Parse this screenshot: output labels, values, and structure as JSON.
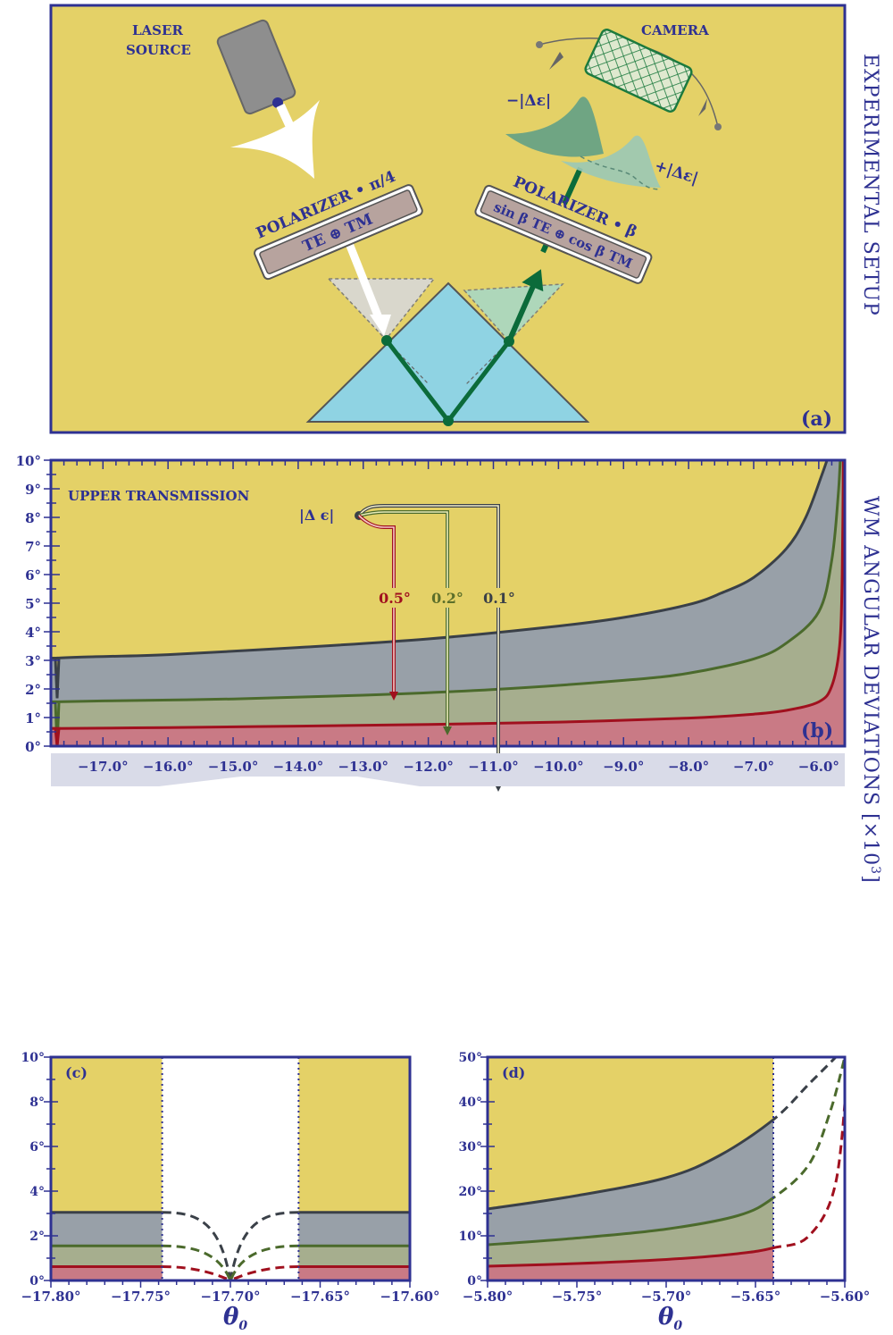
{
  "colors": {
    "bg_yellow": "#e4d167",
    "frame_blue": "#2e3192",
    "gray_band": "#98a0a8",
    "green_band": "#a6ae8e",
    "red_band": "#c97a85",
    "gray_line": "#3a4048",
    "green_line": "#4b6a2c",
    "red_line": "#a0101e",
    "prism": "#8fd3e3",
    "beam_green": "#0b6b3a"
  },
  "panel_a": {
    "label": "(a)",
    "side_title": "EXPERIMENTAL SETUP",
    "laser_label_1": "LASER",
    "laser_label_2": "SOURCE",
    "camera_label": "CAMERA",
    "polarizer_left_title": "POLARIZER • π/4",
    "polarizer_left_box": "TE ⊕ TM",
    "polarizer_right_title": "POLARIZER • β",
    "polarizer_right_box": "sin β TE ⊕ cos β TM",
    "minus_label": "−|Δε|",
    "plus_label": "+|Δε|"
  },
  "chart_data": [
    {
      "id": "b",
      "type": "area",
      "panel_label": "(b)",
      "side_title": "WM ANGULAR DEVIATIONS [×10",
      "side_title_sup": "3",
      "side_title_end": "]",
      "annotation": "UPPER TRANSMISSION",
      "legend_title": "|Δ ϵ|",
      "legend_values": [
        "0.5°",
        "0.2°",
        "0.1°"
      ],
      "xlim": [
        -17.8,
        -5.6
      ],
      "ylim": [
        0,
        10
      ],
      "yticks": [
        0,
        1,
        2,
        3,
        4,
        5,
        6,
        7,
        8,
        9,
        10
      ],
      "ytick_labels": [
        "0°",
        "1°",
        "2°",
        "3°",
        "4°",
        "5°",
        "6°",
        "7°",
        "8°",
        "9°",
        "10°"
      ],
      "xticks": [
        -17,
        -16,
        -15,
        -14,
        -13,
        -12,
        -11,
        -10,
        -9,
        -8,
        -7,
        -6
      ],
      "xtick_labels": [
        "−17.0°",
        "−16.0°",
        "−15.0°",
        "−14.0°",
        "−13.0°",
        "−12.0°",
        "−11.0°",
        "−10.0°",
        "−9.0°",
        "−8.0°",
        "−7.0°",
        "−6.0°"
      ],
      "series": [
        {
          "name": "0.1°",
          "x": [
            -17.7,
            -17.3,
            -16,
            -14,
            -12,
            -10,
            -9,
            -8,
            -7.5,
            -7,
            -6.5,
            -6.2,
            -5.95,
            -5.8
          ],
          "y": [
            3.08,
            3.12,
            3.2,
            3.45,
            3.75,
            4.2,
            4.5,
            4.95,
            5.35,
            5.9,
            6.9,
            8.0,
            9.5,
            10.5
          ]
        },
        {
          "name": "0.2°",
          "x": [
            -17.7,
            -17,
            -15,
            -13,
            -11,
            -9,
            -8,
            -7,
            -6.5,
            -6,
            -5.8,
            -5.7,
            -5.66
          ],
          "y": [
            1.55,
            1.58,
            1.65,
            1.78,
            1.98,
            2.3,
            2.55,
            3.05,
            3.6,
            4.7,
            6.5,
            8.8,
            10.5
          ]
        },
        {
          "name": "0.5°",
          "x": [
            -17.7,
            -16,
            -14,
            -12,
            -10,
            -8,
            -7,
            -6.5,
            -6,
            -5.8,
            -5.68,
            -5.64,
            -5.62
          ],
          "y": [
            0.62,
            0.65,
            0.7,
            0.76,
            0.84,
            0.98,
            1.12,
            1.25,
            1.55,
            2.1,
            3.5,
            6.0,
            10.5
          ]
        }
      ]
    },
    {
      "id": "c",
      "type": "area",
      "panel_label": "(c)",
      "xlabel": "θ",
      "xlabel_sub": "0",
      "xlim": [
        -17.8,
        -17.6
      ],
      "ylim": [
        0,
        10
      ],
      "yticks": [
        0,
        2,
        4,
        6,
        8,
        10
      ],
      "ytick_labels": [
        "0°",
        "2°",
        "4°",
        "6°",
        "8°",
        "10°"
      ],
      "xticks": [
        -17.8,
        -17.75,
        -17.7,
        -17.65,
        -17.6
      ],
      "xtick_labels": [
        "−17.80°",
        "−17.75°",
        "−17.70°",
        "−17.65°",
        "−17.60°"
      ],
      "gap": [
        -17.738,
        -17.662
      ],
      "dip_x": -17.7,
      "series": [
        {
          "name": "0.1°",
          "level": 3.05
        },
        {
          "name": "0.2°",
          "level": 1.55
        },
        {
          "name": "0.5°",
          "level": 0.62
        }
      ]
    },
    {
      "id": "d",
      "type": "area",
      "panel_label": "(d)",
      "xlabel": "θ",
      "xlabel_sub": "0",
      "xlim": [
        -5.8,
        -5.6
      ],
      "ylim": [
        0,
        50
      ],
      "yticks": [
        0,
        10,
        20,
        30,
        40,
        50
      ],
      "ytick_labels": [
        "0°",
        "10°",
        "20°",
        "30°",
        "40°",
        "50°"
      ],
      "xticks": [
        -5.8,
        -5.75,
        -5.7,
        -5.65,
        -5.6
      ],
      "xtick_labels": [
        "−5.80°",
        "−5.75°",
        "−5.70°",
        "−5.65°",
        "−5.60°"
      ],
      "cutoff": -5.64,
      "series": [
        {
          "name": "0.1°",
          "x": [
            -5.8,
            -5.75,
            -5.7,
            -5.67,
            -5.64,
            -5.62,
            -5.605
          ],
          "y": [
            16,
            19,
            23,
            28,
            36,
            44,
            50
          ]
        },
        {
          "name": "0.2°",
          "x": [
            -5.8,
            -5.75,
            -5.7,
            -5.66,
            -5.64,
            -5.62,
            -5.608,
            -5.6
          ],
          "y": [
            8,
            9.5,
            11.5,
            14.5,
            18.5,
            26,
            38,
            50
          ]
        },
        {
          "name": "0.5°",
          "x": [
            -5.8,
            -5.75,
            -5.7,
            -5.66,
            -5.64,
            -5.62,
            -5.605,
            -5.598
          ],
          "y": [
            3.2,
            3.8,
            4.7,
            6,
            7.3,
            10,
            22,
            50
          ]
        }
      ]
    }
  ]
}
